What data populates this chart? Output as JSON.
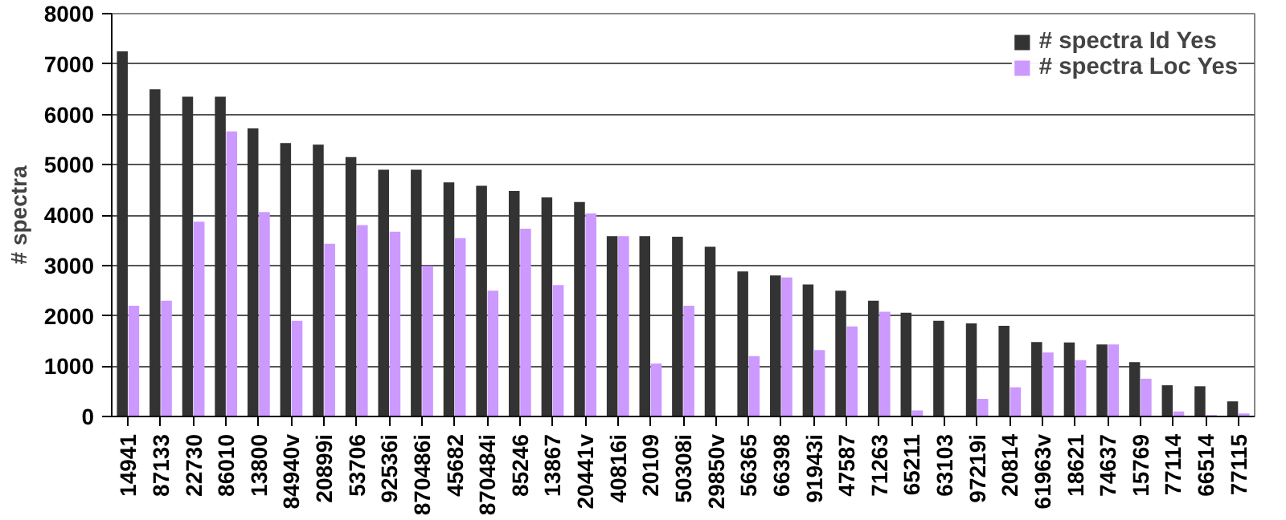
{
  "chart_data": {
    "type": "bar",
    "ylabel": "# spectra",
    "categories": [
      "14941",
      "87133",
      "22730",
      "86010",
      "13800",
      "84940v",
      "20899i",
      "53706",
      "92536i",
      "870486i",
      "45682",
      "870484i",
      "85246",
      "13867",
      "20441v",
      "40816i",
      "20109",
      "50308i",
      "29850v",
      "56365",
      "66398",
      "91943i",
      "47587",
      "71263",
      "65211",
      "63103",
      "97219i",
      "20814",
      "61963v",
      "18621",
      "74637",
      "15769",
      "77114",
      "66514",
      "77115"
    ],
    "series": [
      {
        "name": "# spectra Id Yes",
        "color": "#333333",
        "values": [
          7250,
          6500,
          6350,
          6350,
          5720,
          5430,
          5400,
          5150,
          4900,
          4900,
          4650,
          4580,
          4480,
          4350,
          4260,
          3580,
          3580,
          3570,
          3370,
          2880,
          2800,
          2620,
          2500,
          2300,
          2060,
          1900,
          1850,
          1800,
          1480,
          1470,
          1430,
          1080,
          620,
          600,
          300
        ]
      },
      {
        "name": "# spectra Loc Yes",
        "color": "#cc99ff",
        "values": [
          2200,
          2300,
          3870,
          5660,
          4060,
          1900,
          3430,
          3800,
          3670,
          2990,
          3540,
          2500,
          3730,
          2610,
          4030,
          3580,
          1050,
          2200,
          0,
          1200,
          2760,
          1320,
          1790,
          2080,
          120,
          0,
          350,
          580,
          1270,
          1120,
          1430,
          750,
          100,
          30,
          60
        ]
      }
    ],
    "ylim": [
      0,
      8000
    ],
    "yticks": [
      0,
      1000,
      2000,
      3000,
      4000,
      5000,
      6000,
      7000,
      8000
    ],
    "grid": "y",
    "legend": "top right"
  }
}
